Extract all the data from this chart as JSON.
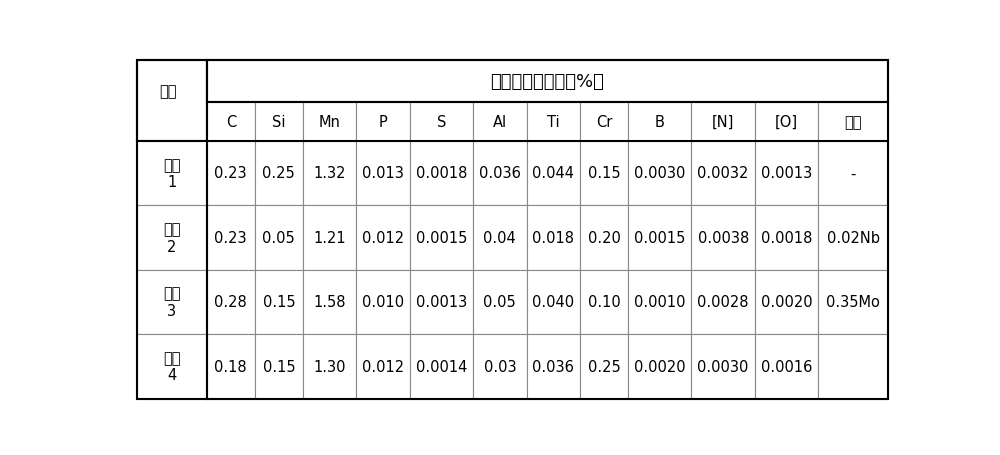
{
  "title": "化学成分（重量，%）",
  "row0_label": "钢板",
  "col_headers": [
    "C",
    "Si",
    "Mn",
    "P",
    "S",
    "Al",
    "Ti",
    "Cr",
    "B",
    "[N]",
    "[O]",
    "其他"
  ],
  "row_labels": [
    "实施\n1",
    "实施\n2",
    "实施\n3",
    "实施\n4"
  ],
  "table_data": [
    [
      "0.23",
      "0.25",
      "1.32",
      "0.013",
      "0.0018",
      "0.036",
      "0.044",
      "0.15",
      "0.0030",
      "0.0032",
      "0.0013",
      "-"
    ],
    [
      "0.23",
      "0.05",
      "1.21",
      "0.012",
      "0.0015",
      "0.04",
      "0.018",
      "0.20",
      "0.0015",
      "0.0038",
      "0.0018",
      "0.02Nb"
    ],
    [
      "0.28",
      "0.15",
      "1.58",
      "0.010",
      "0.0013",
      "0.05",
      "0.040",
      "0.10",
      "0.0010",
      "0.0028",
      "0.0020",
      "0.35Mo"
    ],
    [
      "0.18",
      "0.15",
      "1.30",
      "0.012",
      "0.0014",
      "0.03",
      "0.036",
      "0.25",
      "0.0020",
      "0.0030",
      "0.0016",
      ""
    ]
  ],
  "bg_color": "#ffffff",
  "outer_line_color": "#000000",
  "inner_line_color": "#888888",
  "text_color": "#000000",
  "font_size": 10.5,
  "title_font_size": 13
}
